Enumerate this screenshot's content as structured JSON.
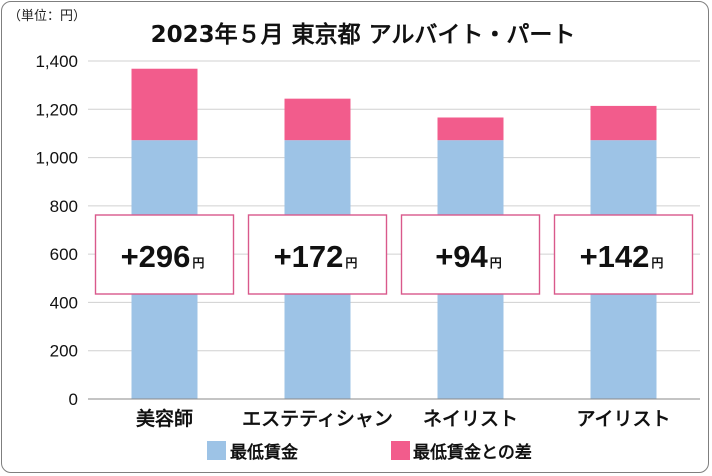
{
  "chart_data": {
    "type": "bar",
    "stacked": true,
    "title": "2023年５月 東京都 アルバイト・パート",
    "unit_label": "（単位：円）",
    "categories": [
      "美容師",
      "エステティシャン",
      "ネイリスト",
      "アイリスト"
    ],
    "series": [
      {
        "name": "最低賃金",
        "values": [
          1072,
          1072,
          1072,
          1072
        ],
        "color": "#9dc3e6"
      },
      {
        "name": "最低賃金との差",
        "values": [
          296,
          172,
          94,
          142
        ],
        "color": "#f25c8c"
      }
    ],
    "annotations": [
      {
        "sign": "+",
        "value": "296",
        "unit": "円"
      },
      {
        "sign": "+",
        "value": "172",
        "unit": "円"
      },
      {
        "sign": "+",
        "value": "94",
        "unit": "円"
      },
      {
        "sign": "+",
        "value": "142",
        "unit": "円"
      }
    ],
    "ylim": [
      0,
      1400
    ],
    "yticks": [
      0,
      200,
      400,
      600,
      800,
      1000,
      1200,
      1400
    ],
    "ytick_labels": [
      "0",
      "200",
      "400",
      "600",
      "800",
      "1,000",
      "1,200",
      "1,400"
    ],
    "grid": true,
    "legend_position": "bottom",
    "annotation_border_color": "#d9598b"
  }
}
